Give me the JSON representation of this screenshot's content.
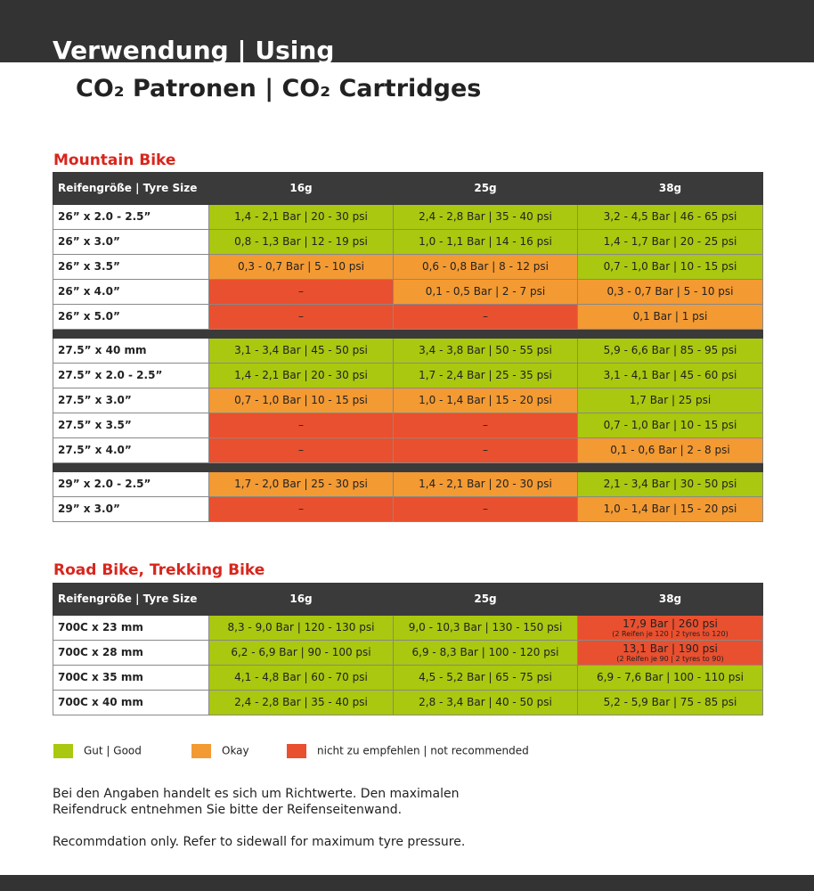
{
  "header": {
    "section": "Verwendung | Using",
    "title": "CO₂ Patronen | CO₂ Cartridges"
  },
  "columns": [
    "Reifengröße | Tyre Size",
    "16g",
    "25g",
    "38g"
  ],
  "tables": [
    {
      "title": "Mountain Bike",
      "groups": [
        [
          {
            "size": "26” x 2.0 - 2.5”",
            "cells": [
              {
                "text": "1,4 - 2,1 Bar | 20 - 30 psi",
                "color": "#a9c80f"
              },
              {
                "text": "2,4 - 2,8 Bar | 35 - 40 psi",
                "color": "#a9c80f"
              },
              {
                "text": "3,2 - 4,5 Bar | 46 - 65 psi",
                "color": "#a9c80f"
              }
            ]
          },
          {
            "size": "26” x 3.0”",
            "cells": [
              {
                "text": "0,8 - 1,3 Bar | 12 - 19 psi",
                "color": "#a9c80f"
              },
              {
                "text": "1,0 - 1,1 Bar | 14 - 16 psi",
                "color": "#a9c80f"
              },
              {
                "text": "1,4 - 1,7 Bar | 20 - 25 psi",
                "color": "#a9c80f"
              }
            ]
          },
          {
            "size": "26” x 3.5”",
            "cells": [
              {
                "text": "0,3 - 0,7 Bar | 5 - 10 psi",
                "color": "#f39a33"
              },
              {
                "text": "0,6 - 0,8 Bar | 8 - 12 psi",
                "color": "#f39a33"
              },
              {
                "text": "0,7 - 1,0 Bar | 10 - 15 psi",
                "color": "#a9c80f"
              }
            ]
          },
          {
            "size": "26” x 4.0”",
            "cells": [
              {
                "text": "–",
                "color": "#e9502f"
              },
              {
                "text": "0,1 - 0,5 Bar | 2 - 7 psi",
                "color": "#f39a33"
              },
              {
                "text": "0,3 - 0,7 Bar | 5 - 10 psi",
                "color": "#f39a33"
              }
            ]
          },
          {
            "size": "26” x 5.0”",
            "cells": [
              {
                "text": "–",
                "color": "#e9502f"
              },
              {
                "text": "–",
                "color": "#e9502f"
              },
              {
                "text": "0,1 Bar | 1 psi",
                "color": "#f39a33"
              }
            ]
          }
        ],
        [
          {
            "size": "27.5” x 40 mm",
            "cells": [
              {
                "text": "3,1 - 3,4 Bar | 45 - 50 psi",
                "color": "#a9c80f"
              },
              {
                "text": "3,4 - 3,8 Bar | 50 - 55 psi",
                "color": "#a9c80f"
              },
              {
                "text": "5,9 - 6,6 Bar | 85 - 95 psi",
                "color": "#a9c80f"
              }
            ]
          },
          {
            "size": "27.5” x 2.0 - 2.5”",
            "cells": [
              {
                "text": "1,4 - 2,1 Bar | 20 - 30 psi",
                "color": "#a9c80f"
              },
              {
                "text": "1,7 - 2,4 Bar | 25 - 35 psi",
                "color": "#a9c80f"
              },
              {
                "text": "3,1 - 4,1 Bar | 45 - 60 psi",
                "color": "#a9c80f"
              }
            ]
          },
          {
            "size": "27.5” x 3.0”",
            "cells": [
              {
                "text": "0,7 - 1,0 Bar | 10 - 15 psi",
                "color": "#f39a33"
              },
              {
                "text": "1,0 - 1,4 Bar | 15 - 20 psi",
                "color": "#f39a33"
              },
              {
                "text": "1,7 Bar | 25 psi",
                "color": "#a9c80f"
              }
            ]
          },
          {
            "size": "27.5” x 3.5”",
            "cells": [
              {
                "text": "–",
                "color": "#e9502f"
              },
              {
                "text": "–",
                "color": "#e9502f"
              },
              {
                "text": "0,7 - 1,0 Bar | 10 - 15 psi",
                "color": "#a9c80f"
              }
            ]
          },
          {
            "size": "27.5” x 4.0”",
            "cells": [
              {
                "text": "–",
                "color": "#e9502f"
              },
              {
                "text": "–",
                "color": "#e9502f"
              },
              {
                "text": "0,1 - 0,6 Bar | 2 - 8 psi",
                "color": "#f39a33"
              }
            ]
          }
        ],
        [
          {
            "size": "29” x 2.0 - 2.5”",
            "cells": [
              {
                "text": "1,7 - 2,0 Bar | 25 - 30 psi",
                "color": "#f39a33"
              },
              {
                "text": "1,4 - 2,1 Bar | 20 - 30 psi",
                "color": "#f39a33"
              },
              {
                "text": "2,1 - 3,4 Bar | 30 - 50 psi",
                "color": "#a9c80f"
              }
            ]
          },
          {
            "size": "29” x 3.0”",
            "cells": [
              {
                "text": "–",
                "color": "#e9502f"
              },
              {
                "text": "–",
                "color": "#e9502f"
              },
              {
                "text": "1,0 - 1,4 Bar | 15 - 20 psi",
                "color": "#f39a33"
              }
            ]
          }
        ]
      ]
    },
    {
      "title": "Road Bike, Trekking Bike",
      "groups": [
        [
          {
            "size": "700C x 23 mm",
            "cells": [
              {
                "text": "8,3 - 9,0 Bar | 120 - 130 psi",
                "color": "#a9c80f"
              },
              {
                "text": "9,0 - 10,3 Bar | 130 - 150 psi",
                "color": "#a9c80f"
              },
              {
                "text": "17,9 Bar | 260 psi",
                "note": "(2 Reifen je 120 | 2 tyres to 120)",
                "color": "#e9502f"
              }
            ]
          },
          {
            "size": "700C x 28 mm",
            "cells": [
              {
                "text": "6,2 - 6,9 Bar | 90 - 100 psi",
                "color": "#a9c80f"
              },
              {
                "text": "6,9 - 8,3 Bar | 100 - 120 psi",
                "color": "#a9c80f"
              },
              {
                "text": "13,1 Bar | 190 psi",
                "note": "(2 Reifen je 90 | 2 tyres to 90)",
                "color": "#e9502f"
              }
            ]
          },
          {
            "size": "700C x 35 mm",
            "cells": [
              {
                "text": "4,1 - 4,8 Bar | 60 - 70 psi",
                "color": "#a9c80f"
              },
              {
                "text": "4,5 - 5,2 Bar | 65 - 75 psi",
                "color": "#a9c80f"
              },
              {
                "text": "6,9 - 7,6 Bar | 100 - 110 psi",
                "color": "#a9c80f"
              }
            ]
          },
          {
            "size": "700C x 40 mm",
            "cells": [
              {
                "text": "2,4 - 2,8 Bar | 35 - 40 psi",
                "color": "#a9c80f"
              },
              {
                "text": "2,8 - 3,4 Bar | 40 - 50 psi",
                "color": "#a9c80f"
              },
              {
                "text": "5,2 - 5,9 Bar | 75 - 85 psi",
                "color": "#a9c80f"
              }
            ]
          }
        ]
      ]
    }
  ],
  "legend": [
    {
      "label": "Gut | Good",
      "color": "#a9c80f"
    },
    {
      "label": "Okay",
      "color": "#f39a33"
    },
    {
      "label": "nicht zu empfehlen | not recommended",
      "color": "#e9502f"
    }
  ],
  "notes": [
    "Bei den Angaben handelt es sich um Richtwerte. Den maximalen",
    "Reifendruck entnehmen Sie bitte der Reifenseitenwand.",
    "Recommdation only. Refer to sidewall for maximum tyre pressure."
  ]
}
